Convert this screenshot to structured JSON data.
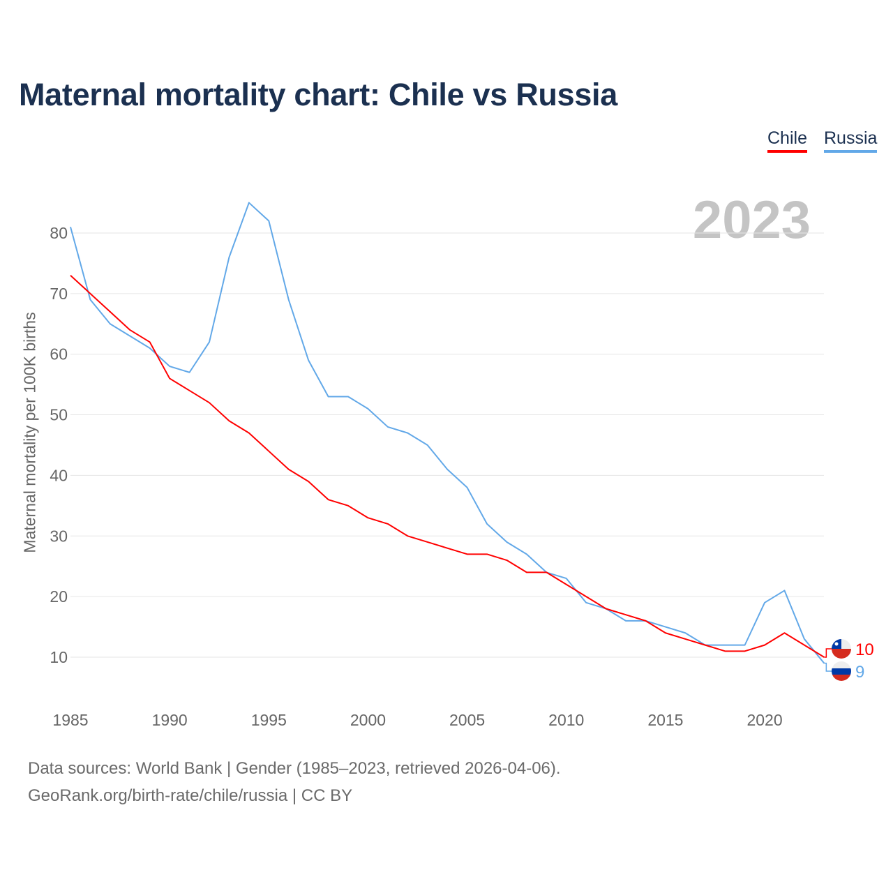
{
  "title": "Maternal mortality chart: Chile vs Russia",
  "year_badge": "2023",
  "footer": {
    "line1": "Data sources: World Bank | Gender (1985–2023, retrieved 2026-04-06).",
    "line2": "GeoRank.org/birth-rate/chile/russia | CC BY"
  },
  "chart_data": {
    "type": "line",
    "title": "Maternal mortality chart: Chile vs Russia",
    "xlabel": "",
    "ylabel": "Maternal mortality per 100K births",
    "xlim": [
      1985,
      2023
    ],
    "ylim": [
      5,
      90
    ],
    "x_ticks": [
      "1985",
      "1990",
      "1995",
      "2000",
      "2005",
      "2010",
      "2015",
      "2020"
    ],
    "y_ticks": [
      "10",
      "20",
      "30",
      "40",
      "50",
      "60",
      "70",
      "80"
    ],
    "grid": true,
    "legend_position": "top-right",
    "x": [
      1985,
      1986,
      1987,
      1988,
      1989,
      1990,
      1991,
      1992,
      1993,
      1994,
      1995,
      1996,
      1997,
      1998,
      1999,
      2000,
      2001,
      2002,
      2003,
      2004,
      2005,
      2006,
      2007,
      2008,
      2009,
      2010,
      2011,
      2012,
      2013,
      2014,
      2015,
      2016,
      2017,
      2018,
      2019,
      2020,
      2021,
      2022,
      2023
    ],
    "series": [
      {
        "name": "Chile",
        "color": "#ff0000",
        "end_label": "10",
        "values": [
          73,
          70,
          67,
          64,
          62,
          56,
          54,
          52,
          49,
          47,
          44,
          41,
          39,
          36,
          35,
          33,
          32,
          30,
          29,
          28,
          27,
          27,
          26,
          24,
          24,
          22,
          20,
          18,
          17,
          16,
          14,
          13,
          12,
          11,
          11,
          12,
          14,
          12,
          10
        ]
      },
      {
        "name": "Russia",
        "color": "#62a8e8",
        "end_label": "9",
        "values": [
          81,
          69,
          65,
          63,
          61,
          58,
          57,
          62,
          76,
          85,
          82,
          69,
          59,
          53,
          53,
          51,
          48,
          47,
          45,
          41,
          38,
          32,
          29,
          27,
          24,
          23,
          19,
          18,
          16,
          16,
          15,
          14,
          12,
          12,
          12,
          19,
          21,
          13,
          9
        ]
      }
    ]
  }
}
